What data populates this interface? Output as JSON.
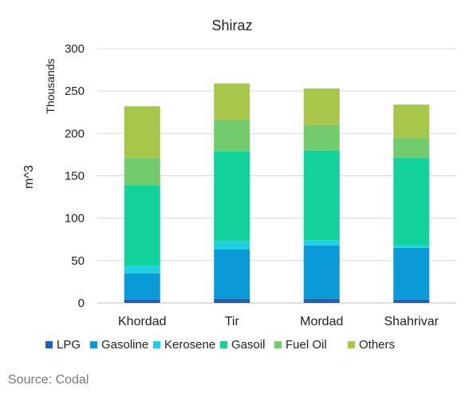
{
  "chart_data": {
    "type": "bar",
    "stacked": true,
    "title": "Shiraz",
    "ylabel": "m^3",
    "yunit": "Thousands",
    "xlabel": "",
    "ylim": [
      0,
      300
    ],
    "yticks": [
      0,
      50,
      100,
      150,
      200,
      250,
      300
    ],
    "grid": true,
    "legend_position": "bottom",
    "categories": [
      "Khordad",
      "Tir",
      "Mordad",
      "Shahrivar"
    ],
    "series": [
      {
        "name": "LPG",
        "color": "#1f5fb4",
        "values": [
          4,
          5,
          5,
          4
        ]
      },
      {
        "name": "Gasoline",
        "color": "#0a9ad7",
        "values": [
          31,
          58,
          63,
          61
        ]
      },
      {
        "name": "Kerosene",
        "color": "#1ed0e0",
        "values": [
          9,
          10,
          6,
          3
        ]
      },
      {
        "name": "Gasoil",
        "color": "#13d19b",
        "values": [
          95,
          106,
          106,
          103
        ]
      },
      {
        "name": "Fuel Oil",
        "color": "#73cc6c",
        "values": [
          32,
          37,
          30,
          24
        ]
      },
      {
        "name": "Others",
        "color": "#a8c64a",
        "values": [
          61,
          43,
          43,
          39
        ]
      }
    ]
  },
  "source": "Source: Codal"
}
